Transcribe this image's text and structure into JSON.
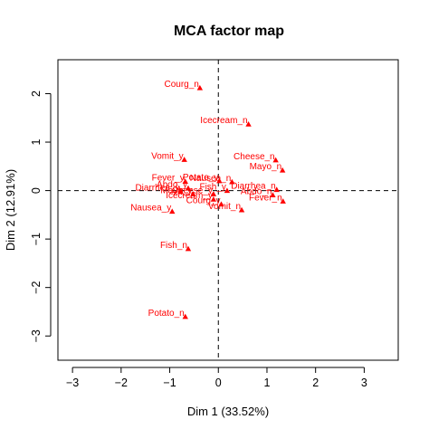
{
  "chart_data": {
    "type": "scatter",
    "title": "MCA factor map",
    "xlabel": "Dim 1 (33.52%)",
    "ylabel": "Dim 2 (12.91%)",
    "xlim": [
      -3.3,
      3.7
    ],
    "ylim": [
      -3.5,
      2.7
    ],
    "x_ticks": [
      -3,
      -2,
      -1,
      0,
      1,
      2,
      3
    ],
    "y_ticks": [
      -3,
      -2,
      -1,
      0,
      1,
      2
    ],
    "reference_lines": {
      "x": 0,
      "y": 0,
      "style": "dashed"
    },
    "point_color": "#ff0000",
    "label_color": "#ff0000",
    "marker": "triangle",
    "points": [
      {
        "label": "Courg_n",
        "x": -0.38,
        "y": 2.12
      },
      {
        "label": "Icecream_n",
        "x": 0.62,
        "y": 1.37
      },
      {
        "label": "Vomit_y",
        "x": -0.7,
        "y": 0.64
      },
      {
        "label": "Cheese_n",
        "x": 1.18,
        "y": 0.63
      },
      {
        "label": "Mayo_n",
        "x": 1.32,
        "y": 0.42
      },
      {
        "label": "Fever_y",
        "x": -0.68,
        "y": 0.19
      },
      {
        "label": "Potato_y",
        "x": 0.02,
        "y": 0.2
      },
      {
        "label": "Nausea_n",
        "x": 0.28,
        "y": 0.18
      },
      {
        "label": "Abdo_y",
        "x": -0.62,
        "y": 0.05
      },
      {
        "label": "Fish_y",
        "x": 0.18,
        "y": 0.0
      },
      {
        "label": "Diarrhea_y",
        "x": -0.78,
        "y": -0.02
      },
      {
        "label": "Diarrhea_n",
        "x": 1.2,
        "y": 0.02
      },
      {
        "label": "Mayo_y",
        "x": -0.52,
        "y": -0.07
      },
      {
        "label": "Cheese_y",
        "x": -0.1,
        "y": -0.07
      },
      {
        "label": "Abdo_n",
        "x": 1.12,
        "y": -0.09
      },
      {
        "label": "Icecream_y",
        "x": -0.1,
        "y": -0.18
      },
      {
        "label": "Fever_n",
        "x": 1.33,
        "y": -0.22
      },
      {
        "label": "Courg_y",
        "x": 0.06,
        "y": -0.28
      },
      {
        "label": "Vomit_n",
        "x": 0.48,
        "y": -0.4
      },
      {
        "label": "Nausea_y",
        "x": -0.95,
        "y": -0.43
      },
      {
        "label": "Fish_n",
        "x": -0.62,
        "y": -1.2
      },
      {
        "label": "Potato_n",
        "x": -0.68,
        "y": -2.6
      }
    ]
  }
}
